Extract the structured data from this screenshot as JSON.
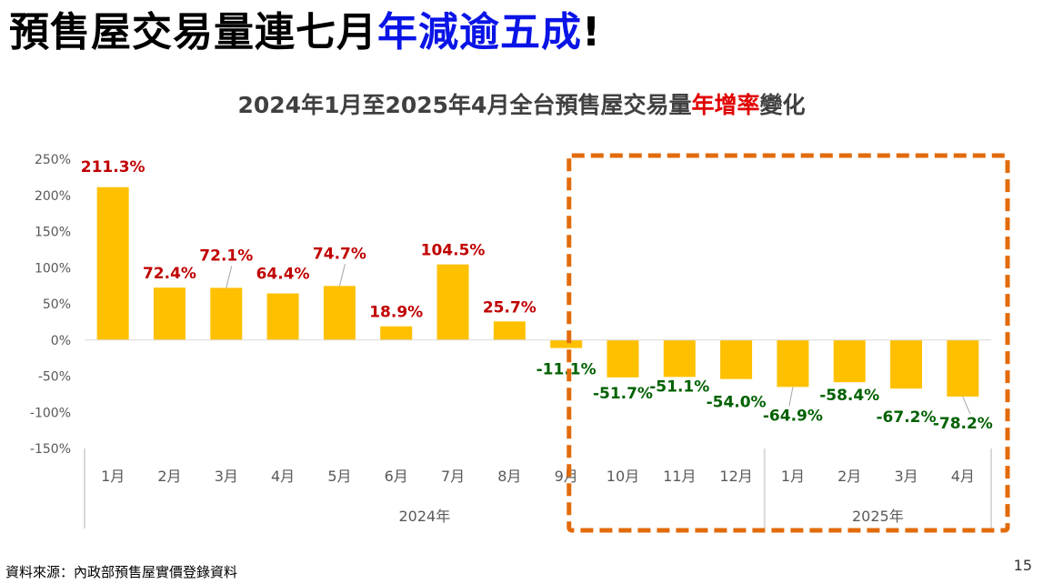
{
  "slide": {
    "title_main": "預售屋交易量連七月",
    "title_accent": "年減逾五成",
    "title_end": "!",
    "source": "資料來源：內政部預售屋實價登錄資料",
    "page_number": "15"
  },
  "colors": {
    "bar": "#FFC000",
    "positive_label": "#C00000",
    "negative_label": "#006100",
    "highlight_box": "#E26B0A",
    "title_accent": "#0A14E6",
    "subtitle_accent": "#E00000"
  },
  "chart_data": {
    "type": "bar",
    "title_prefix": "2024年1月至2025年4月全台預售屋交易量",
    "title_accent": "年增率",
    "title_suffix": "變化",
    "categories": [
      "1月",
      "2月",
      "3月",
      "4月",
      "5月",
      "6月",
      "7月",
      "8月",
      "9月",
      "10月",
      "11月",
      "12月",
      "1月",
      "2月",
      "3月",
      "4月"
    ],
    "groups": [
      {
        "label": "2024年",
        "count": 12
      },
      {
        "label": "2025年",
        "count": 4
      }
    ],
    "values": [
      211.3,
      72.4,
      72.1,
      64.4,
      74.7,
      18.9,
      104.5,
      25.7,
      -11.1,
      -51.7,
      -51.1,
      -54.0,
      -64.9,
      -58.4,
      -67.2,
      -78.2
    ],
    "data_labels": [
      "211.3%",
      "72.4%",
      "72.1%",
      "64.4%",
      "74.7%",
      "18.9%",
      "104.5%",
      "25.7%",
      "-11.1%",
      "-51.7%",
      "-51.1%",
      "-54.0%",
      "-64.9%",
      "-58.4%",
      "-67.2%",
      "-78.2%"
    ],
    "ylim": [
      -150,
      250
    ],
    "yticks": [
      250,
      200,
      150,
      100,
      50,
      0,
      -50,
      -100,
      -150
    ],
    "ytick_labels": [
      "250%",
      "200%",
      "150%",
      "100%",
      "50%",
      "0%",
      "-50%",
      "-100%",
      "-150%"
    ],
    "grid": false,
    "legend": "none",
    "highlight": "2024-10 to 2025-04"
  }
}
